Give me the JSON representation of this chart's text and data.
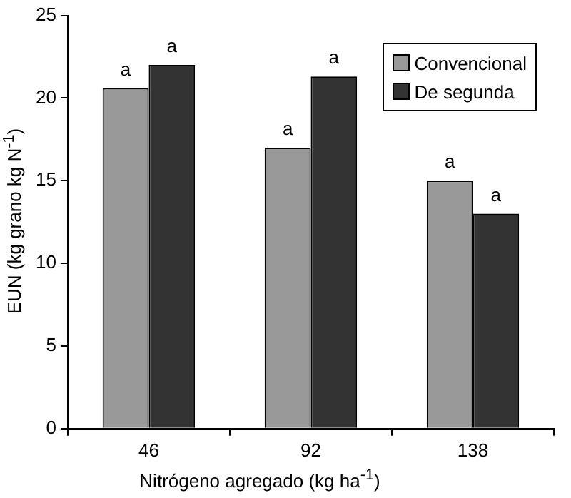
{
  "chart_data": {
    "type": "bar",
    "xlabel": "Nitrógeno agregado (kg ha$^{-1}$)",
    "ylabel": "EUN (kg grano kg N$^{-1}$)",
    "categories": [
      "46",
      "92",
      "138"
    ],
    "series": [
      {
        "name": "Convencional",
        "color": "#999999",
        "values": [
          20.6,
          17.0,
          15.0
        ]
      },
      {
        "name": "De segunda",
        "color": "#333333",
        "values": [
          22.0,
          21.3,
          13.0
        ]
      }
    ],
    "ylim": [
      0,
      25
    ],
    "yticks": [
      0,
      5,
      10,
      15,
      20,
      25
    ],
    "grid": false,
    "legend": "top right",
    "annotations": [
      {
        "text": "a",
        "x": "46",
        "y": 20.6
      },
      {
        "text": "a",
        "x": "46",
        "y": 22.0
      },
      {
        "text": "a",
        "x": "92",
        "y": 17.0
      },
      {
        "text": "a",
        "x": "92",
        "y": 21.3
      },
      {
        "text": "a",
        "x": "138",
        "y": 15.0
      },
      {
        "text": "a",
        "x": "138",
        "y": 13.0
      }
    ]
  }
}
